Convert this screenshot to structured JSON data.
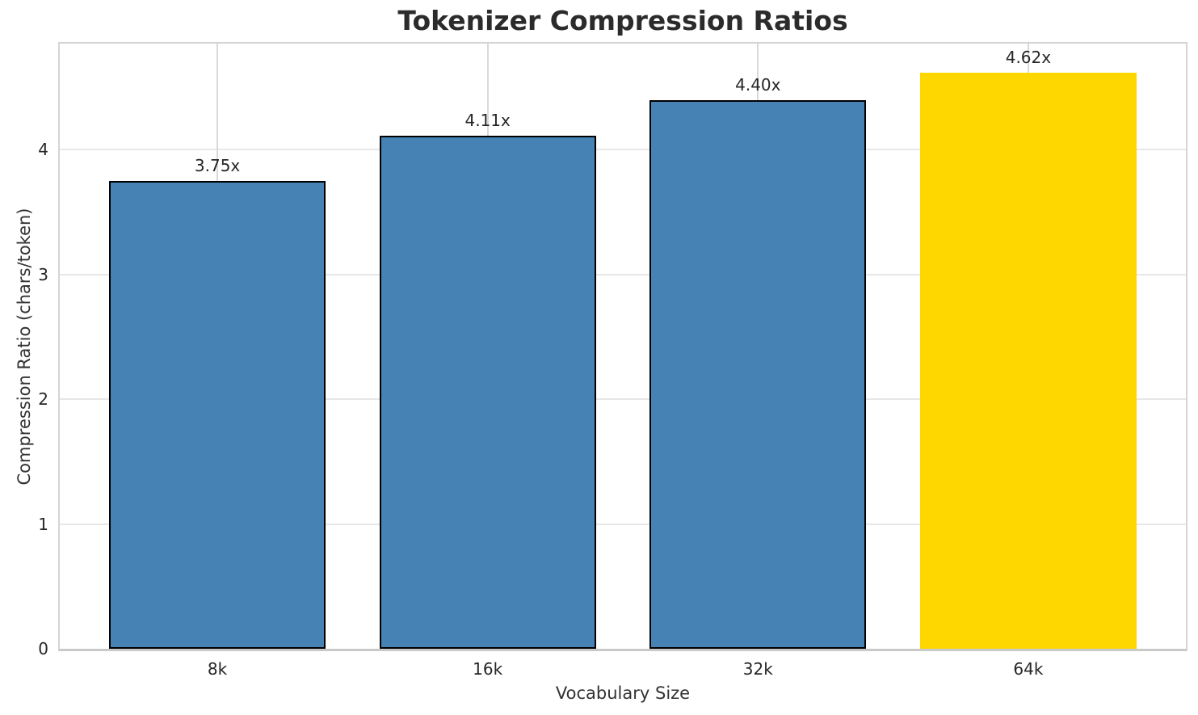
{
  "chart_data": {
    "type": "bar",
    "title": "Tokenizer Compression Ratios",
    "xlabel": "Vocabulary Size",
    "ylabel": "Compression Ratio (chars/token)",
    "categories": [
      "8k",
      "16k",
      "32k",
      "64k"
    ],
    "values": [
      3.75,
      4.11,
      4.4,
      4.62
    ],
    "value_labels": [
      "3.75x",
      "4.11x",
      "4.40x",
      "4.62x"
    ],
    "yticks": [
      0,
      1,
      2,
      3,
      4
    ],
    "ytick_labels": [
      "0",
      "1",
      "2",
      "3",
      "4"
    ],
    "ylim": [
      0,
      4.85
    ],
    "grid": true,
    "legend": "none",
    "bar_colors": [
      "#4682B4",
      "#4682B4",
      "#4682B4",
      "#FFD700"
    ],
    "bar_edge_colors": [
      "#000000",
      "#000000",
      "#000000",
      "#FFD700"
    ],
    "series_color": "#4682B4",
    "highlight_color": "#FFD700",
    "grid_color": "#e0e0e0",
    "spine_color": "#d4d4d4",
    "title_color": "#2b2b2b",
    "text_color": "#262626"
  }
}
